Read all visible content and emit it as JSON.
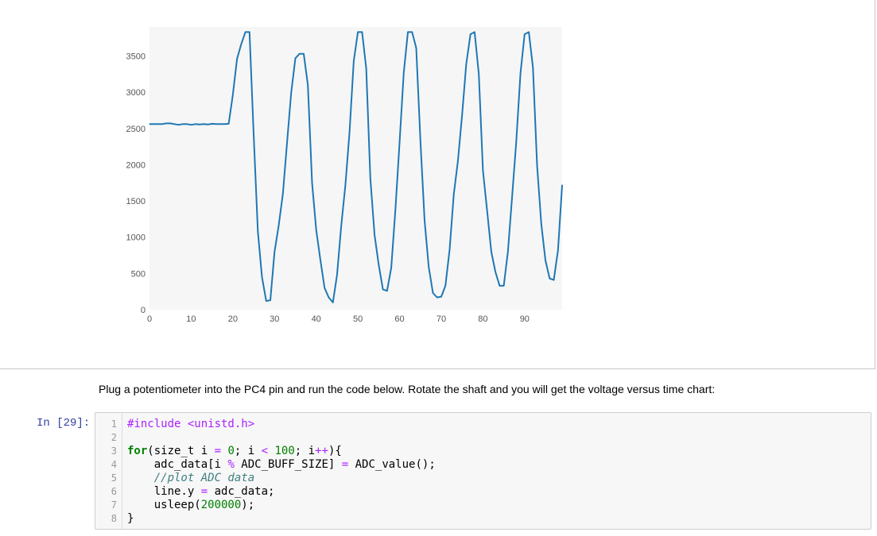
{
  "chart_data": {
    "type": "line",
    "x": [
      0,
      1,
      2,
      3,
      4,
      5,
      6,
      7,
      8,
      9,
      10,
      11,
      12,
      13,
      14,
      15,
      16,
      17,
      18,
      19,
      20,
      21,
      22,
      23,
      24,
      25,
      26,
      27,
      28,
      29,
      30,
      31,
      32,
      33,
      34,
      35,
      36,
      37,
      38,
      39,
      40,
      41,
      42,
      43,
      44,
      45,
      46,
      47,
      48,
      49,
      50,
      51,
      52,
      53,
      54,
      55,
      56,
      57,
      58,
      59,
      60,
      61,
      62,
      63,
      64,
      65,
      66,
      67,
      68,
      69,
      70,
      71,
      72,
      73,
      74,
      75,
      76,
      77,
      78,
      79,
      80,
      81,
      82,
      83,
      84,
      85,
      86,
      87,
      88,
      89,
      90,
      91,
      92,
      93,
      94,
      95,
      96,
      97,
      98,
      99
    ],
    "y": [
      2560,
      2560,
      2560,
      2560,
      2570,
      2570,
      2560,
      2550,
      2560,
      2560,
      2550,
      2560,
      2555,
      2560,
      2555,
      2565,
      2560,
      2560,
      2560,
      2565,
      2960,
      3460,
      3660,
      3830,
      3830,
      2400,
      1080,
      450,
      120,
      130,
      800,
      1160,
      1600,
      2300,
      2990,
      3470,
      3530,
      3530,
      3100,
      1750,
      1100,
      690,
      300,
      170,
      100,
      480,
      1160,
      1720,
      2450,
      3430,
      3830,
      3830,
      3330,
      1810,
      1030,
      620,
      280,
      260,
      580,
      1380,
      2300,
      3270,
      3830,
      3830,
      3610,
      2320,
      1230,
      590,
      230,
      170,
      180,
      330,
      830,
      1590,
      2050,
      2690,
      3390,
      3800,
      3830,
      3250,
      1920,
      1370,
      800,
      520,
      330,
      330,
      800,
      1560,
      2320,
      3260,
      3800,
      3830,
      3340,
      1990,
      1180,
      680,
      430,
      410,
      820,
      1720
    ],
    "xlim": [
      0,
      99
    ],
    "ylim": [
      0,
      3900
    ],
    "xticks": [
      0,
      10,
      20,
      30,
      40,
      50,
      60,
      70,
      80,
      90
    ],
    "yticks": [
      0,
      500,
      1000,
      1500,
      2000,
      2500,
      3000,
      3500
    ],
    "grid": false,
    "color": "#1f77b4"
  },
  "markdown": {
    "text": "Plug a potentiometer into the PC4 pin and run the code below. Rotate the shaft and you will get the voltage versus time chart:"
  },
  "code_cell": {
    "prompt": "In [29]:",
    "line_numbers": [
      "1",
      "2",
      "3",
      "4",
      "5",
      "6",
      "7",
      "8"
    ],
    "lines": [
      [
        {
          "t": "#include <unistd.h>",
          "c": "pre"
        }
      ],
      [],
      [
        {
          "t": "for",
          "c": "kw"
        },
        {
          "t": "(size_t i "
        },
        {
          "t": "=",
          "c": "op"
        },
        {
          "t": " "
        },
        {
          "t": "0",
          "c": "num"
        },
        {
          "t": "; i "
        },
        {
          "t": "<",
          "c": "op"
        },
        {
          "t": " "
        },
        {
          "t": "100",
          "c": "num"
        },
        {
          "t": "; i"
        },
        {
          "t": "++",
          "c": "op"
        },
        {
          "t": "){"
        }
      ],
      [
        {
          "t": "    adc_data[i "
        },
        {
          "t": "%",
          "c": "op"
        },
        {
          "t": " ADC_BUFF_SIZE] "
        },
        {
          "t": "=",
          "c": "op"
        },
        {
          "t": " ADC_value();"
        }
      ],
      [
        {
          "t": "    //plot ADC data",
          "c": "cm"
        }
      ],
      [
        {
          "t": "    line.y "
        },
        {
          "t": "=",
          "c": "op"
        },
        {
          "t": " adc_data;"
        }
      ],
      [
        {
          "t": "    usleep("
        },
        {
          "t": "200000",
          "c": "num"
        },
        {
          "t": ");"
        }
      ],
      [
        {
          "t": "}"
        }
      ]
    ]
  }
}
